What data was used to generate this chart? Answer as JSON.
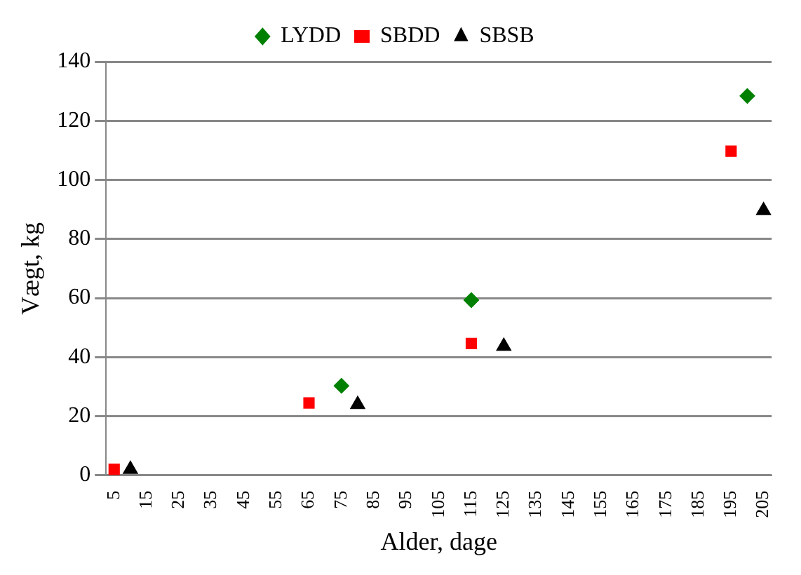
{
  "chart_data": {
    "type": "scatter",
    "xlabel": "Alder, dage",
    "ylabel": "Vægt, kg",
    "series": [
      {
        "name": "LYDD",
        "color": "#008000",
        "marker": "diamond",
        "x": [
          75,
          115,
          200
        ],
        "values": [
          30.3,
          59.3,
          128.4
        ]
      },
      {
        "name": "SBDD",
        "color": "#ff0000",
        "marker": "square",
        "x": [
          5,
          65,
          115,
          195
        ],
        "values": [
          2,
          24.5,
          44.6,
          109.7
        ]
      },
      {
        "name": "SBSB",
        "color": "#000000",
        "marker": "triangle",
        "x": [
          10,
          80,
          125,
          205
        ],
        "values": [
          2,
          24,
          43.7,
          89.6
        ]
      }
    ],
    "xlim": [
      2.5,
      207.5
    ],
    "xticks": [
      5,
      15,
      25,
      35,
      45,
      55,
      65,
      75,
      85,
      95,
      105,
      115,
      125,
      135,
      145,
      155,
      165,
      175,
      185,
      195,
      205
    ],
    "ylim": [
      0,
      140
    ],
    "yticks": [
      0,
      20,
      40,
      60,
      80,
      100,
      120,
      140
    ],
    "grid": "y",
    "legend": "top"
  }
}
